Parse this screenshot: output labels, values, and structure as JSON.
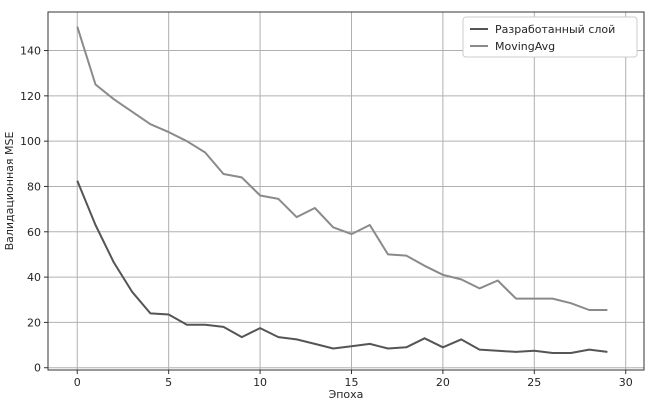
{
  "chart_data": {
    "type": "line",
    "title": "",
    "xlabel": "Эпоха",
    "ylabel": "Валидационная MSE",
    "xlim": [
      -1.6,
      31
    ],
    "ylim": [
      -1,
      157
    ],
    "xticks": [
      0,
      5,
      10,
      15,
      20,
      25,
      30
    ],
    "yticks": [
      0,
      20,
      40,
      60,
      80,
      100,
      120,
      140
    ],
    "grid": true,
    "legend": "top-right",
    "x": [
      0,
      1,
      2,
      3,
      4,
      5,
      6,
      7,
      8,
      9,
      10,
      11,
      12,
      13,
      14,
      15,
      16,
      17,
      18,
      19,
      20,
      21,
      22,
      23,
      24,
      25,
      26,
      27,
      28,
      29
    ],
    "series": [
      {
        "name": "Разработанный слой",
        "color": "#555555",
        "values": [
          82.5,
          63,
          46.5,
          33.5,
          24,
          23.5,
          19,
          19,
          18,
          13.5,
          17.5,
          13.5,
          12.5,
          10.5,
          8.5,
          9.5,
          10.5,
          8.5,
          9,
          13,
          9,
          12.5,
          8,
          7.5,
          7,
          7.5,
          6.5,
          6.5,
          8,
          7
        ]
      },
      {
        "name": "MovingAvg",
        "color": "#8a8a8a",
        "values": [
          150.5,
          125,
          118.5,
          113,
          107.5,
          104,
          100,
          95,
          85.5,
          84,
          76,
          74.5,
          66.5,
          70.5,
          62,
          59,
          63,
          50,
          49.5,
          45,
          41,
          39,
          35,
          38.5,
          30.5,
          30.5,
          30.5,
          28.5,
          25.5,
          25.5
        ]
      }
    ]
  }
}
